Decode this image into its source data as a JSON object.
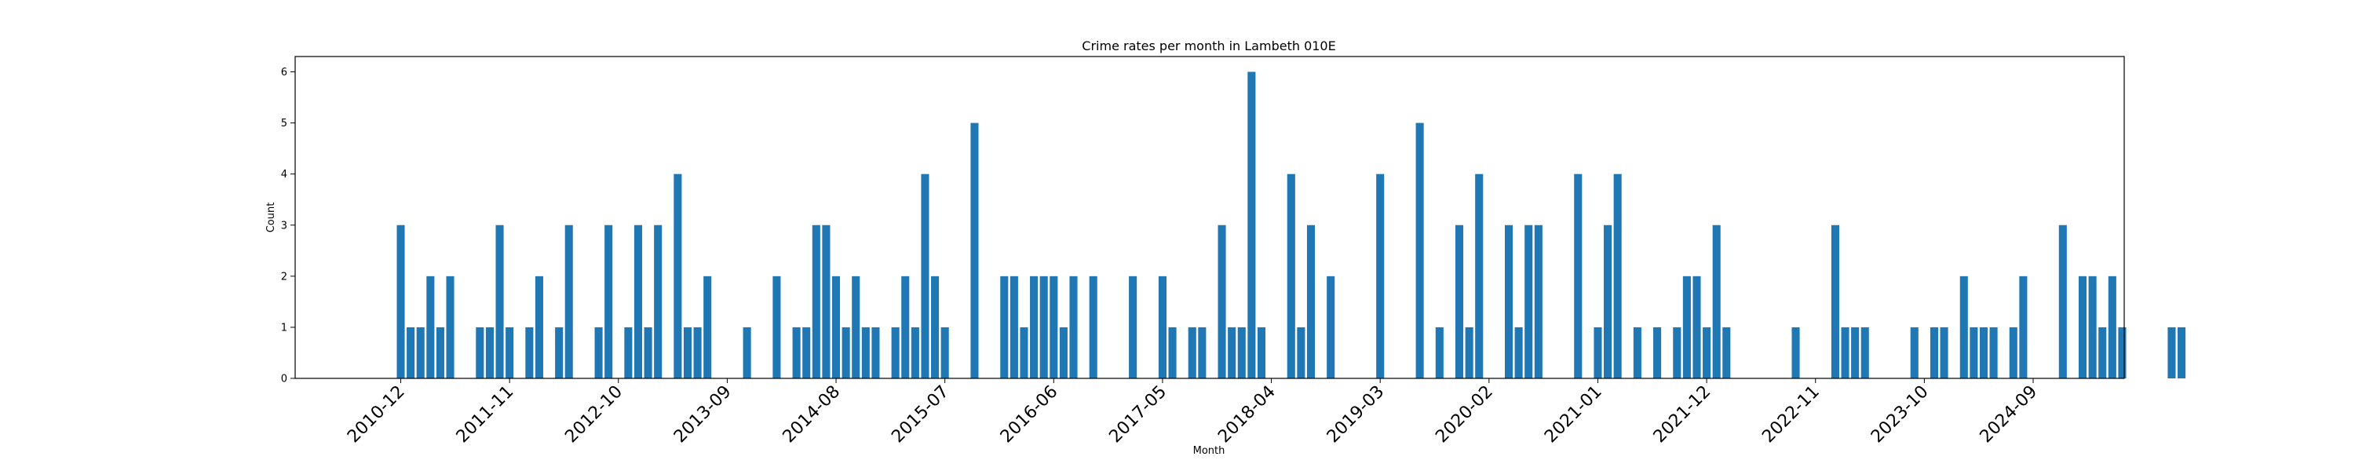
{
  "chart_data": {
    "type": "bar",
    "title": "Crime rates per month in Lambeth 010E",
    "xlabel": "Month",
    "ylabel": "Count",
    "ylim": [
      0,
      6.3
    ],
    "yticks": [
      0,
      1,
      2,
      3,
      4,
      5,
      6
    ],
    "xtick_labels": [
      "2010-12",
      "2011-11",
      "2012-10",
      "2013-09",
      "2014-08",
      "2015-07",
      "2016-06",
      "2017-05",
      "2018-04",
      "2019-03",
      "2020-02",
      "2021-01",
      "2021-12",
      "2022-11",
      "2023-10",
      "2024-09"
    ],
    "bar_color": "#1f77b4",
    "grid": false,
    "start_month": "2010-12",
    "values": [
      3,
      1,
      1,
      2,
      1,
      2,
      0,
      0,
      1,
      1,
      3,
      1,
      0,
      1,
      2,
      0,
      1,
      3,
      0,
      0,
      1,
      3,
      0,
      1,
      3,
      1,
      3,
      0,
      4,
      1,
      1,
      2,
      0,
      0,
      0,
      1,
      0,
      0,
      2,
      0,
      1,
      1,
      3,
      3,
      2,
      1,
      2,
      1,
      1,
      0,
      1,
      2,
      1,
      4,
      2,
      1,
      0,
      0,
      5,
      0,
      0,
      2,
      2,
      1,
      2,
      2,
      2,
      1,
      2,
      0,
      2,
      0,
      0,
      0,
      2,
      0,
      0,
      2,
      1,
      0,
      1,
      1,
      0,
      3,
      1,
      1,
      6,
      1,
      0,
      0,
      4,
      1,
      3,
      0,
      2,
      0,
      0,
      0,
      0,
      4,
      0,
      0,
      0,
      5,
      0,
      1,
      0,
      3,
      1,
      4,
      0,
      0,
      3,
      1,
      3,
      3,
      0,
      0,
      0,
      4,
      0,
      1,
      3,
      4,
      0,
      1,
      0,
      1,
      0,
      1,
      2,
      2,
      1,
      3,
      1,
      0,
      0,
      0,
      0,
      0,
      0,
      1,
      0,
      0,
      0,
      3,
      1,
      1,
      1,
      0,
      0,
      0,
      0,
      1,
      0,
      1,
      1,
      0,
      2,
      1,
      1,
      1,
      0,
      1,
      2,
      0,
      0,
      0,
      3,
      0,
      2,
      2,
      1,
      2,
      1,
      0,
      0,
      0,
      0,
      1,
      1
    ]
  }
}
